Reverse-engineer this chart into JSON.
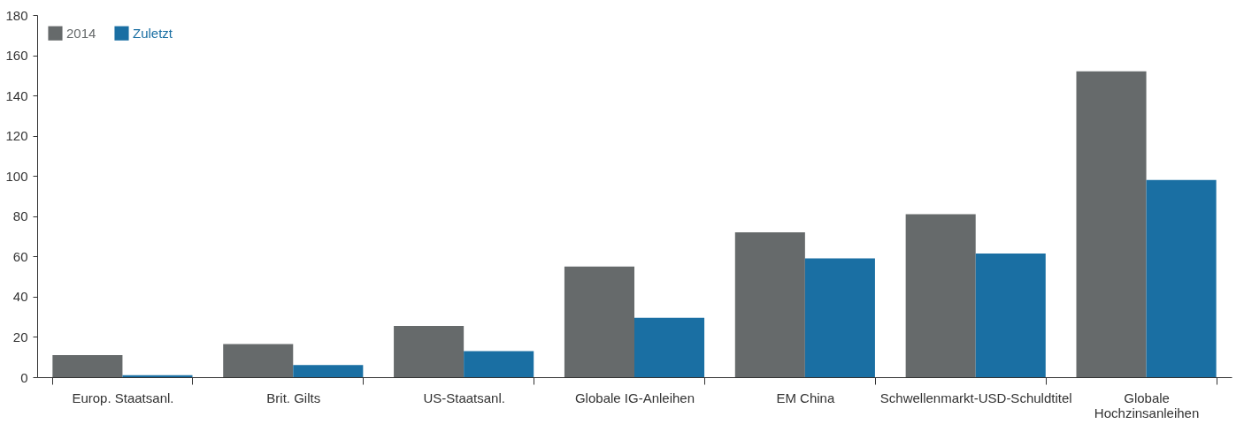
{
  "chart_data": {
    "type": "bar",
    "categories": [
      "Europ. Staatsanl.",
      "Brit. Gilts",
      "US-Staatsanl.",
      "Globale IG-Anleihen",
      "EM China",
      "Schwellenmarkt-USD-Schuldtitel",
      "Globale Hochzinsanleihen"
    ],
    "series": [
      {
        "name": "2014",
        "color": "#666a6b",
        "values": [
          11,
          16.5,
          25.5,
          55,
          72,
          81,
          152
        ]
      },
      {
        "name": "Zuletzt",
        "color": "#1a6fa3",
        "values": [
          1,
          6,
          13,
          29.5,
          59,
          61.5,
          98
        ]
      }
    ],
    "ylim": [
      0,
      180
    ],
    "yticks": [
      0,
      20,
      40,
      60,
      80,
      100,
      120,
      140,
      160,
      180
    ],
    "grid": false,
    "legend": "top left"
  }
}
